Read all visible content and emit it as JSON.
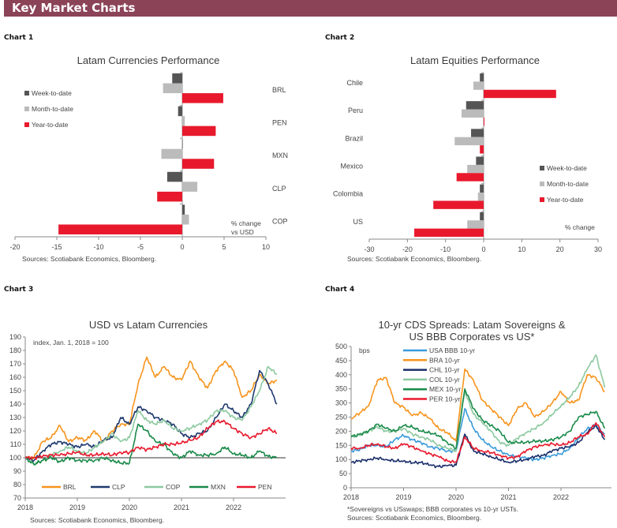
{
  "header": {
    "title": "Key Market Charts"
  },
  "colors": {
    "header": "#8B4358",
    "week": "#555555",
    "month": "#BBBBBB",
    "year": "#E8192C"
  },
  "chart_data": [
    {
      "id": "chart1",
      "label": "Chart 1",
      "type": "bar",
      "orientation": "horizontal",
      "title": "Latam Currencies Performance",
      "categories": [
        "BRL",
        "PEN",
        "MXN",
        "CLP",
        "COP"
      ],
      "series": [
        {
          "name": "Week-to-date",
          "color": "#555555",
          "values": [
            -1.2,
            -0.5,
            0.0,
            -1.8,
            0.3
          ]
        },
        {
          "name": "Month-to-date",
          "color": "#BBBBBB",
          "values": [
            -2.3,
            0.3,
            -2.5,
            1.8,
            0.8
          ]
        },
        {
          "name": "Year-to-date",
          "color": "#E8192C",
          "values": [
            4.9,
            4.0,
            3.8,
            -3.0,
            -14.8
          ]
        }
      ],
      "xlim": [
        -20,
        10
      ],
      "xticks": [
        "-20",
        "-15",
        "-10",
        "-5",
        "0",
        "5",
        "10"
      ],
      "unit_note": [
        "% change",
        "vs USD"
      ],
      "legend": "left",
      "source": "Sources: Scotiabank Economics, Bloomberg."
    },
    {
      "id": "chart2",
      "label": "Chart 2",
      "type": "bar",
      "orientation": "horizontal",
      "title": "Latam Equities Performance",
      "categories": [
        "Chile",
        "Peru",
        "Brazil",
        "Mexico",
        "Colombia",
        "US"
      ],
      "series": [
        {
          "name": "Week-to-date",
          "color": "#555555",
          "values": [
            -1.0,
            -4.6,
            -3.3,
            -2.0,
            -1.0,
            -1.0
          ]
        },
        {
          "name": "Month-to-date",
          "color": "#BBBBBB",
          "values": [
            -2.7,
            -5.8,
            -7.6,
            -4.3,
            -1.5,
            -4.3
          ]
        },
        {
          "name": "Year-to-date",
          "color": "#E8192C",
          "values": [
            19.0,
            0.2,
            -1.0,
            -7.1,
            -13.2,
            -18.2
          ]
        }
      ],
      "xlim": [
        -30,
        30
      ],
      "xticks": [
        "-30",
        "-20",
        "-10",
        "0",
        "10",
        "20",
        "30"
      ],
      "unit_note": [
        "% change"
      ],
      "legend": "right",
      "source": "Sources: Scotiabank Economics, Bloomberg."
    },
    {
      "id": "chart3",
      "label": "Chart 3",
      "type": "line",
      "title": "USD vs Latam Currencies",
      "annotation": "index, Jan. 1, 2018 = 100",
      "ylim": [
        70,
        190
      ],
      "yticks": [
        "190",
        "180",
        "170",
        "160",
        "150",
        "140",
        "130",
        "120",
        "110",
        "100",
        "90",
        "80",
        "70"
      ],
      "xticks": [
        "2018",
        "2019",
        "2020",
        "2021",
        "2022"
      ],
      "reference_line": 100,
      "legend": "bottom",
      "dates": [
        "2018-01",
        "2018-03",
        "2018-05",
        "2018-07",
        "2018-09",
        "2018-11",
        "2019-01",
        "2019-03",
        "2019-05",
        "2019-07",
        "2019-09",
        "2019-11",
        "2020-01",
        "2020-03",
        "2020-05",
        "2020-07",
        "2020-09",
        "2020-11",
        "2021-01",
        "2021-03",
        "2021-05",
        "2021-07",
        "2021-09",
        "2021-11",
        "2022-01",
        "2022-03",
        "2022-05",
        "2022-07",
        "2022-09",
        "2022-11"
      ],
      "series": [
        {
          "name": "BRL",
          "color": "#F7941D",
          "values": [
            100,
            100,
            112,
            115,
            124,
            112,
            115,
            113,
            120,
            112,
            120,
            125,
            125,
            155,
            175,
            160,
            168,
            160,
            158,
            172,
            160,
            152,
            165,
            172,
            165,
            145,
            150,
            162,
            155,
            158
          ]
        },
        {
          "name": "CLP",
          "color": "#1F3A6E",
          "values": [
            100,
            98,
            105,
            110,
            112,
            110,
            108,
            110,
            108,
            113,
            115,
            130,
            125,
            138,
            135,
            130,
            128,
            125,
            118,
            115,
            118,
            120,
            130,
            140,
            135,
            130,
            140,
            165,
            155,
            140
          ]
        },
        {
          "name": "COP",
          "color": "#8CC9A0",
          "values": [
            100,
            95,
            98,
            102,
            105,
            108,
            105,
            103,
            108,
            112,
            118,
            112,
            115,
            135,
            128,
            125,
            128,
            122,
            120,
            122,
            125,
            128,
            135,
            135,
            130,
            128,
            138,
            150,
            168,
            162
          ]
        },
        {
          "name": "MXN",
          "color": "#1A8A4A",
          "values": [
            100,
            95,
            98,
            100,
            97,
            100,
            98,
            98,
            98,
            100,
            98,
            96,
            96,
            125,
            120,
            112,
            110,
            103,
            100,
            105,
            102,
            102,
            103,
            108,
            103,
            102,
            100,
            105,
            101,
            100
          ]
        },
        {
          "name": "PEN",
          "color": "#E8192C",
          "values": [
            100,
            100,
            101,
            102,
            102,
            103,
            104,
            102,
            102,
            103,
            102,
            104,
            104,
            108,
            106,
            108,
            110,
            110,
            111,
            113,
            115,
            122,
            127,
            127,
            122,
            118,
            115,
            118,
            122,
            118
          ]
        }
      ],
      "source": "Sources: Scotiabank Economics, Bloomberg."
    },
    {
      "id": "chart4",
      "label": "Chart 4",
      "type": "line",
      "title": [
        "10-yr CDS Spreads: Latam Sovereigns &",
        "US BBB Corporates vs US*"
      ],
      "ylabel": "bps",
      "ylim": [
        0,
        500
      ],
      "yticks": [
        "500",
        "450",
        "400",
        "350",
        "300",
        "250",
        "200",
        "150",
        "100",
        "50",
        "0"
      ],
      "xticks": [
        "2018",
        "2019",
        "2020",
        "2021",
        "2022"
      ],
      "legend": "top-left",
      "dates": [
        "2018-01",
        "2018-03",
        "2018-05",
        "2018-07",
        "2018-09",
        "2018-11",
        "2019-01",
        "2019-03",
        "2019-05",
        "2019-07",
        "2019-09",
        "2019-11",
        "2020-01",
        "2020-03",
        "2020-05",
        "2020-07",
        "2020-09",
        "2020-11",
        "2021-01",
        "2021-03",
        "2021-05",
        "2021-07",
        "2021-09",
        "2021-11",
        "2022-01",
        "2022-03",
        "2022-05",
        "2022-07",
        "2022-09",
        "2022-11"
      ],
      "series": [
        {
          "name": "USA BBB 10-yr",
          "color": "#3A9AD9",
          "values": [
            130,
            135,
            150,
            150,
            145,
            170,
            185,
            170,
            160,
            145,
            140,
            130,
            130,
            280,
            210,
            170,
            145,
            130,
            115,
            110,
            105,
            100,
            105,
            115,
            120,
            140,
            175,
            210,
            220,
            190
          ]
        },
        {
          "name": "BRA 10-yr",
          "color": "#F7941D",
          "values": [
            245,
            265,
            290,
            380,
            390,
            300,
            285,
            255,
            265,
            245,
            210,
            195,
            165,
            420,
            380,
            310,
            280,
            250,
            220,
            280,
            300,
            250,
            270,
            300,
            340,
            300,
            310,
            400,
            390,
            340
          ]
        },
        {
          "name": "CHL 10-yr",
          "color": "#1A2F6B",
          "values": [
            90,
            95,
            100,
            105,
            100,
            95,
            95,
            88,
            90,
            80,
            75,
            78,
            80,
            190,
            130,
            120,
            110,
            100,
            90,
            95,
            100,
            110,
            115,
            130,
            140,
            145,
            160,
            195,
            220,
            170
          ]
        },
        {
          "name": "COL 10-yr",
          "color": "#8CC9A0",
          "values": [
            180,
            185,
            200,
            215,
            200,
            200,
            210,
            190,
            180,
            170,
            150,
            140,
            130,
            340,
            260,
            230,
            200,
            160,
            150,
            175,
            195,
            210,
            230,
            260,
            290,
            320,
            360,
            420,
            470,
            355
          ]
        },
        {
          "name": "MEX 10-yr",
          "color": "#1A8A4A",
          "values": [
            180,
            190,
            200,
            225,
            210,
            200,
            220,
            215,
            200,
            195,
            185,
            160,
            140,
            350,
            280,
            240,
            220,
            200,
            160,
            160,
            160,
            165,
            165,
            170,
            180,
            200,
            250,
            260,
            270,
            210
          ]
        },
        {
          "name": "PER 10-yr",
          "color": "#E8192C",
          "values": [
            140,
            140,
            150,
            155,
            145,
            140,
            155,
            145,
            130,
            120,
            110,
            95,
            90,
            180,
            140,
            130,
            125,
            115,
            105,
            110,
            130,
            145,
            150,
            155,
            150,
            160,
            180,
            190,
            230,
            180
          ]
        }
      ],
      "footnote": "*Sovereigns vs USswaps; BBB corporates vs 10-yr USTs.",
      "source": "Sources: Scotiabank Economics, Bloomberg."
    }
  ]
}
